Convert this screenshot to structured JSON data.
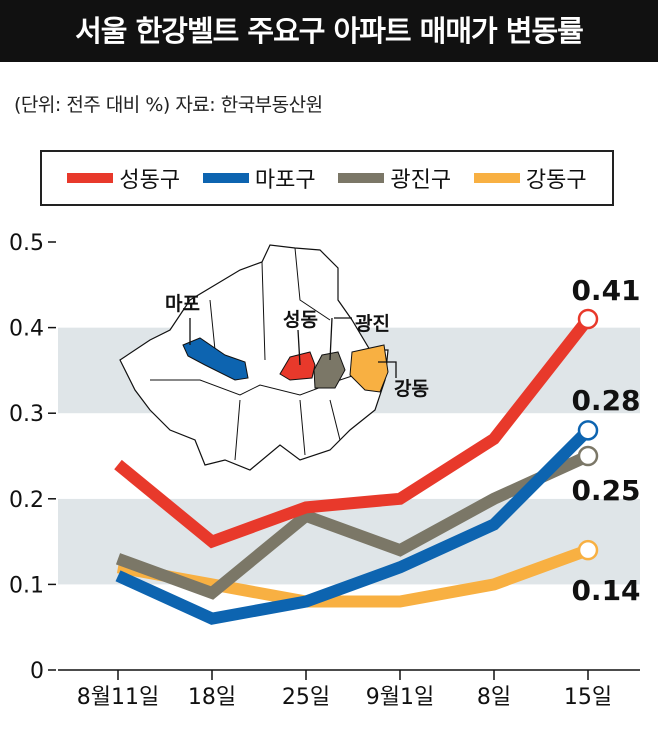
{
  "header": {
    "title": "서울 한강벨트 주요구 아파트 매매가 변동률"
  },
  "subtitle": "(단위: 전주 대비 %)   자료: 한국부동산원",
  "map_labels": [
    "마포",
    "성동",
    "광진",
    "강동"
  ],
  "chart_data": {
    "type": "line",
    "title": "서울 한강벨트 주요구 아파트 매매가 변동률",
    "xlabel": "",
    "ylabel": "",
    "categories": [
      "8월11일",
      "18일",
      "25일",
      "9월1일",
      "8일",
      "15일"
    ],
    "ylim": [
      0,
      0.5
    ],
    "yticks": [
      "0",
      "0.1",
      "0.2",
      "0.3",
      "0.4",
      "0.5"
    ],
    "legend_position": "top",
    "series": [
      {
        "name": "성동구",
        "color": "#e8392b",
        "values": [
          0.24,
          0.15,
          0.19,
          0.2,
          0.27,
          0.41
        ],
        "end_label": "0.41"
      },
      {
        "name": "마포구",
        "color": "#0d64b0",
        "values": [
          0.11,
          0.06,
          0.08,
          0.12,
          0.17,
          0.28
        ],
        "end_label": "0.28"
      },
      {
        "name": "광진구",
        "color": "#7b7767",
        "values": [
          0.13,
          0.09,
          0.18,
          0.14,
          0.2,
          0.25
        ],
        "end_label": "0.25"
      },
      {
        "name": "강동구",
        "color": "#f8b042",
        "values": [
          0.12,
          0.1,
          0.08,
          0.08,
          0.1,
          0.14
        ],
        "end_label": "0.14"
      }
    ]
  }
}
